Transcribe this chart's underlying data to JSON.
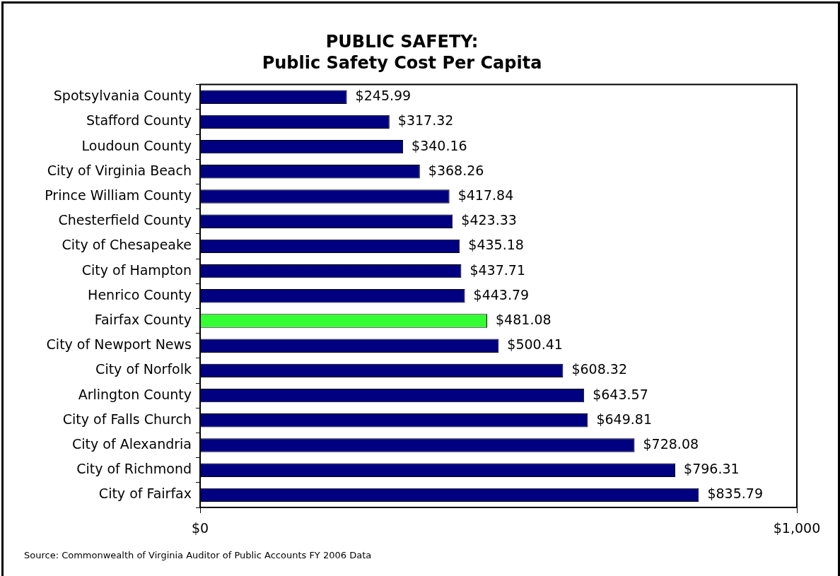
{
  "chart_data": {
    "type": "bar",
    "orientation": "horizontal",
    "title": "PUBLIC SAFETY:",
    "subtitle": "Public Safety Cost Per Capita",
    "categories": [
      "Spotsylvania County",
      "Stafford County",
      "Loudoun County",
      "City of Virginia Beach",
      "Prince William County",
      "Chesterfield County",
      "City of Chesapeake",
      "City of Hampton",
      "Henrico County",
      "Fairfax County",
      "City of Newport News",
      "City of Norfolk",
      "Arlington County",
      "City of Falls Church",
      "City of Alexandria",
      "City of Richmond",
      "City of Fairfax"
    ],
    "values": [
      245.99,
      317.32,
      340.16,
      368.26,
      417.84,
      423.33,
      435.18,
      437.71,
      443.79,
      481.08,
      500.41,
      608.32,
      643.57,
      649.81,
      728.08,
      796.31,
      835.79
    ],
    "colors": [
      "#000080",
      "#000080",
      "#000080",
      "#000080",
      "#000080",
      "#000080",
      "#000080",
      "#000080",
      "#000080",
      "#33ff33",
      "#000080",
      "#000080",
      "#000080",
      "#000080",
      "#000080",
      "#000080",
      "#000080"
    ],
    "value_labels": [
      "$245.99",
      "$317.32",
      "$340.16",
      "$368.26",
      "$417.84",
      "$423.33",
      "$435.18",
      "$437.71",
      "$443.79",
      "$481.08",
      "$500.41",
      "$608.32",
      "$643.57",
      "$649.81",
      "$728.08",
      "$796.31",
      "$835.79"
    ],
    "xlim": [
      0,
      1000
    ],
    "xticks": [
      {
        "value": 0,
        "label": "$0"
      },
      {
        "value": 1000,
        "label": "$1,000"
      }
    ],
    "annotations": [
      "Source: Commonwealth of Virginia Auditor of Public Accounts FY 2006 Data"
    ]
  }
}
